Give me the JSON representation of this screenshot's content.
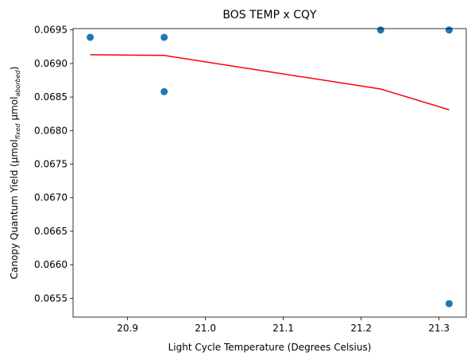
{
  "chart_data": {
    "type": "scatter",
    "title": "BOS TEMP x CQY",
    "xlabel": "Light Cycle Temperature (Degrees Celsius)",
    "ylabel": {
      "main": "Canopy Quantum Yield (μmol",
      "sub1": "fixed",
      "mid": " μmol",
      "sub2": "aborbed",
      "end": ")"
    },
    "xlim": [
      20.83,
      21.335
    ],
    "ylim": [
      0.06522,
      0.06952
    ],
    "xticks": [
      20.9,
      21.0,
      21.1,
      21.2,
      21.3
    ],
    "xtick_labels": [
      "20.9",
      "21.0",
      "21.1",
      "21.2",
      "21.3"
    ],
    "yticks": [
      0.0655,
      0.066,
      0.0665,
      0.067,
      0.0675,
      0.068,
      0.0685,
      0.069,
      0.0695
    ],
    "ytick_labels": [
      "0.0655",
      "0.0660",
      "0.0665",
      "0.0670",
      "0.0675",
      "0.0680",
      "0.0685",
      "0.0690",
      "0.0695"
    ],
    "grid": false,
    "series": [
      {
        "kind": "scatter",
        "color": "#1f77b4",
        "points": [
          [
            20.852,
            0.06939
          ],
          [
            20.947,
            0.06939
          ],
          [
            20.947,
            0.06858
          ],
          [
            21.225,
            0.0695
          ],
          [
            21.313,
            0.0695
          ],
          [
            21.313,
            0.06542
          ]
        ]
      },
      {
        "kind": "line",
        "color": "#ff0000",
        "points": [
          [
            20.852,
            0.06913
          ],
          [
            20.947,
            0.06912
          ],
          [
            21.225,
            0.06862
          ],
          [
            21.313,
            0.06831
          ]
        ]
      }
    ]
  }
}
